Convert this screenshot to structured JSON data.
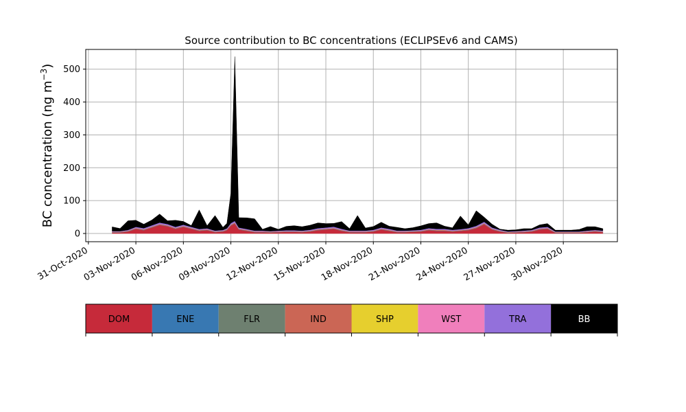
{
  "chart_data": {
    "type": "area",
    "title": "Source contribution to BC concentrations (ECLIPSEv6 and CAMS)",
    "ylabel_main": "BC concentration (ng m",
    "ylabel_sup": "−3",
    "ylabel_close": ")",
    "ylim": [
      -25,
      560
    ],
    "xlim": [
      "2020-10-30T20:00",
      "2020-12-03T10:00"
    ],
    "grid": true,
    "y_ticks": [
      0,
      100,
      200,
      300,
      400,
      500
    ],
    "x_ticks": [
      "31-Oct-2020",
      "03-Nov-2020",
      "06-Nov-2020",
      "09-Nov-2020",
      "12-Nov-2020",
      "15-Nov-2020",
      "18-Nov-2020",
      "21-Nov-2020",
      "24-Nov-2020",
      "27-Nov-2020",
      "30-Nov-2020"
    ],
    "x_tick_dates": [
      "2020-10-31",
      "2020-11-03",
      "2020-11-06",
      "2020-11-09",
      "2020-11-12",
      "2020-11-15",
      "2020-11-18",
      "2020-11-21",
      "2020-11-24",
      "2020-11-27",
      "2020-11-30"
    ],
    "x": [
      "2020-11-01T12:00",
      "2020-11-02T00:00",
      "2020-11-02T12:00",
      "2020-11-03T00:00",
      "2020-11-03T12:00",
      "2020-11-04T00:00",
      "2020-11-04T12:00",
      "2020-11-05T00:00",
      "2020-11-05T12:00",
      "2020-11-06T00:00",
      "2020-11-06T12:00",
      "2020-11-07T00:00",
      "2020-11-07T12:00",
      "2020-11-08T00:00",
      "2020-11-08T12:00",
      "2020-11-08T18:00",
      "2020-11-09T00:00",
      "2020-11-09T06:00",
      "2020-11-09T12:00",
      "2020-11-10T00:00",
      "2020-11-10T12:00",
      "2020-11-11T00:00",
      "2020-11-11T12:00",
      "2020-11-12T00:00",
      "2020-11-12T12:00",
      "2020-11-13T00:00",
      "2020-11-13T12:00",
      "2020-11-14T00:00",
      "2020-11-14T12:00",
      "2020-11-15T00:00",
      "2020-11-15T12:00",
      "2020-11-16T00:00",
      "2020-11-16T12:00",
      "2020-11-17T00:00",
      "2020-11-17T12:00",
      "2020-11-18T00:00",
      "2020-11-18T12:00",
      "2020-11-19T00:00",
      "2020-11-19T12:00",
      "2020-11-20T00:00",
      "2020-11-20T12:00",
      "2020-11-21T00:00",
      "2020-11-21T12:00",
      "2020-11-22T00:00",
      "2020-11-22T12:00",
      "2020-11-23T00:00",
      "2020-11-23T12:00",
      "2020-11-24T00:00",
      "2020-11-24T12:00",
      "2020-11-25T00:00",
      "2020-11-25T12:00",
      "2020-11-26T00:00",
      "2020-11-26T12:00",
      "2020-11-27T00:00",
      "2020-11-27T12:00",
      "2020-11-28T00:00",
      "2020-11-28T12:00",
      "2020-11-29T00:00",
      "2020-11-29T12:00",
      "2020-11-30T00:00",
      "2020-11-30T12:00",
      "2020-12-01T00:00",
      "2020-12-01T12:00",
      "2020-12-02T00:00",
      "2020-12-02T12:00"
    ],
    "series": [
      {
        "name": "DOM",
        "color": "#c62a3a",
        "values": [
          3,
          3,
          6,
          14,
          10,
          18,
          26,
          22,
          14,
          20,
          14,
          8,
          10,
          4,
          6,
          10,
          24,
          30,
          12,
          8,
          4,
          4,
          3,
          4,
          5,
          5,
          4,
          6,
          10,
          12,
          14,
          8,
          4,
          4,
          4,
          6,
          12,
          8,
          4,
          4,
          5,
          6,
          10,
          8,
          8,
          6,
          8,
          10,
          16,
          28,
          12,
          6,
          2,
          3,
          4,
          6,
          12,
          14,
          2,
          2,
          2,
          2,
          4,
          6,
          4
        ]
      },
      {
        "name": "ENE",
        "color": "#3878b2",
        "values": [
          0.5,
          0.5,
          0.5,
          0.5,
          0.5,
          0.5,
          0.5,
          0.5,
          0.5,
          0.5,
          0.5,
          0.5,
          0.5,
          0.5,
          0.5,
          0.5,
          0.5,
          0.5,
          0.5,
          0.5,
          0.5,
          0.5,
          0.5,
          0.5,
          0.5,
          0.5,
          0.5,
          0.5,
          0.5,
          0.5,
          0.5,
          0.5,
          0.5,
          0.5,
          0.5,
          0.5,
          0.5,
          0.5,
          0.5,
          0.5,
          0.5,
          0.5,
          0.5,
          0.5,
          0.5,
          0.5,
          0.5,
          0.5,
          0.5,
          0.5,
          0.5,
          0.5,
          0.5,
          0.5,
          0.5,
          0.5,
          0.5,
          0.5,
          0.5,
          0.5,
          0.5,
          0.5,
          0.5,
          0.5,
          0.5
        ]
      },
      {
        "name": "FLR",
        "color": "#6e8070",
        "values": [
          0.5,
          0.5,
          0.5,
          0.5,
          0.5,
          0.5,
          0.5,
          0.5,
          0.5,
          0.5,
          0.5,
          0.5,
          0.5,
          0.5,
          0.5,
          0.5,
          0.5,
          0.5,
          0.5,
          0.5,
          0.5,
          0.5,
          0.5,
          0.5,
          0.5,
          0.5,
          0.5,
          0.5,
          0.5,
          0.5,
          0.5,
          0.5,
          0.5,
          0.5,
          0.5,
          0.5,
          0.5,
          0.5,
          0.5,
          0.5,
          0.5,
          0.5,
          0.5,
          0.5,
          0.5,
          0.5,
          0.5,
          0.5,
          0.5,
          0.5,
          0.5,
          0.5,
          0.5,
          0.5,
          0.5,
          0.5,
          0.5,
          0.5,
          0.5,
          0.5,
          0.5,
          0.5,
          0.5,
          0.5,
          0.5
        ]
      },
      {
        "name": "IND",
        "color": "#cb6655",
        "values": [
          1,
          1,
          1,
          1.5,
          1.5,
          1.5,
          1.5,
          1.5,
          1.5,
          1.5,
          1.5,
          1.5,
          1.5,
          1,
          1,
          1.5,
          2,
          2,
          1.5,
          1.5,
          1,
          1,
          1,
          1,
          1,
          1,
          1,
          1,
          1.5,
          1.5,
          1.5,
          1.5,
          1,
          1,
          1,
          1,
          1.5,
          1.5,
          1,
          1,
          1,
          1,
          1.5,
          1.5,
          1.5,
          1,
          1,
          1.5,
          2,
          2,
          1.5,
          1,
          1,
          1,
          1,
          1,
          1.5,
          1.5,
          1,
          1,
          1,
          1,
          1,
          1,
          1
        ]
      },
      {
        "name": "SHP",
        "color": "#e6cf2e",
        "values": [
          0.2,
          0.2,
          0.2,
          0.2,
          0.2,
          0.2,
          0.2,
          0.2,
          0.2,
          0.2,
          0.2,
          0.2,
          0.2,
          0.2,
          0.2,
          0.2,
          0.2,
          0.2,
          0.2,
          0.2,
          0.2,
          0.2,
          0.2,
          0.2,
          0.2,
          0.2,
          0.2,
          0.2,
          0.2,
          0.2,
          0.2,
          0.2,
          0.2,
          0.2,
          0.2,
          0.2,
          0.2,
          0.2,
          0.2,
          0.2,
          0.2,
          0.2,
          0.2,
          0.2,
          0.2,
          0.2,
          0.2,
          0.2,
          0.2,
          0.2,
          0.2,
          0.2,
          0.2,
          0.2,
          0.2,
          0.2,
          0.2,
          0.2,
          0.2,
          0.2,
          0.2,
          0.2,
          0.2,
          0.2,
          0.2
        ]
      },
      {
        "name": "WST",
        "color": "#f07fbc",
        "values": [
          0.5,
          0.5,
          0.5,
          0.5,
          0.5,
          0.5,
          0.5,
          0.5,
          0.5,
          0.5,
          0.5,
          0.5,
          0.5,
          0.5,
          0.5,
          0.5,
          0.5,
          0.5,
          0.5,
          0.5,
          0.5,
          0.5,
          0.5,
          0.5,
          0.5,
          0.5,
          0.5,
          0.5,
          0.5,
          0.5,
          0.5,
          0.5,
          0.5,
          0.5,
          0.5,
          0.5,
          0.5,
          0.5,
          0.5,
          0.5,
          0.5,
          0.5,
          0.5,
          0.5,
          0.5,
          0.5,
          0.5,
          0.5,
          0.5,
          0.5,
          0.5,
          0.5,
          0.5,
          0.5,
          0.5,
          0.5,
          0.5,
          0.5,
          0.5,
          0.5,
          0.5,
          0.5,
          0.5,
          0.5,
          0.5
        ]
      },
      {
        "name": "TRA",
        "color": "#9370db",
        "values": [
          1.5,
          1.5,
          2,
          3,
          3,
          3.5,
          4,
          3.5,
          3,
          3.5,
          3,
          2.5,
          2.5,
          2,
          2,
          2.5,
          4,
          4.5,
          3,
          2.5,
          2,
          2,
          1.5,
          2,
          2,
          2,
          2,
          2.5,
          3,
          3,
          3.5,
          3,
          2,
          2,
          2,
          2.5,
          3,
          3,
          2,
          2,
          2,
          2.5,
          3,
          3,
          3,
          2.5,
          2.5,
          3,
          3.5,
          4,
          3,
          2.5,
          1.5,
          1.5,
          2,
          2,
          3,
          3,
          1.5,
          1.5,
          1.5,
          1.5,
          2,
          2,
          2
        ]
      },
      {
        "name": "BB",
        "color": "#000000",
        "values": [
          13,
          8,
          28,
          20,
          12,
          16,
          26,
          10,
          20,
          10,
          4,
          58,
          8,
          46,
          8,
          15,
          90,
          500,
          30,
          34,
          36,
          4,
          14,
          4,
          12,
          14,
          12,
          14,
          16,
          12,
          10,
          22,
          6,
          46,
          8,
          10,
          16,
          8,
          10,
          6,
          8,
          12,
          14,
          18,
          8,
          6,
          40,
          10,
          46,
          14,
          10,
          2,
          4,
          4,
          6,
          4,
          8,
          10,
          4,
          4,
          4,
          6,
          12,
          10,
          6
        ]
      }
    ]
  },
  "legend": {
    "items": [
      {
        "label": "DOM",
        "color": "#c62a3a",
        "text_color": "#000000"
      },
      {
        "label": "ENE",
        "color": "#3878b2",
        "text_color": "#000000"
      },
      {
        "label": "FLR",
        "color": "#6e8070",
        "text_color": "#000000"
      },
      {
        "label": "IND",
        "color": "#cb6655",
        "text_color": "#000000"
      },
      {
        "label": "SHP",
        "color": "#e6cf2e",
        "text_color": "#000000"
      },
      {
        "label": "WST",
        "color": "#f07fbc",
        "text_color": "#000000"
      },
      {
        "label": "TRA",
        "color": "#9370db",
        "text_color": "#000000"
      },
      {
        "label": "BB",
        "color": "#000000",
        "text_color": "#ffffff"
      }
    ]
  }
}
